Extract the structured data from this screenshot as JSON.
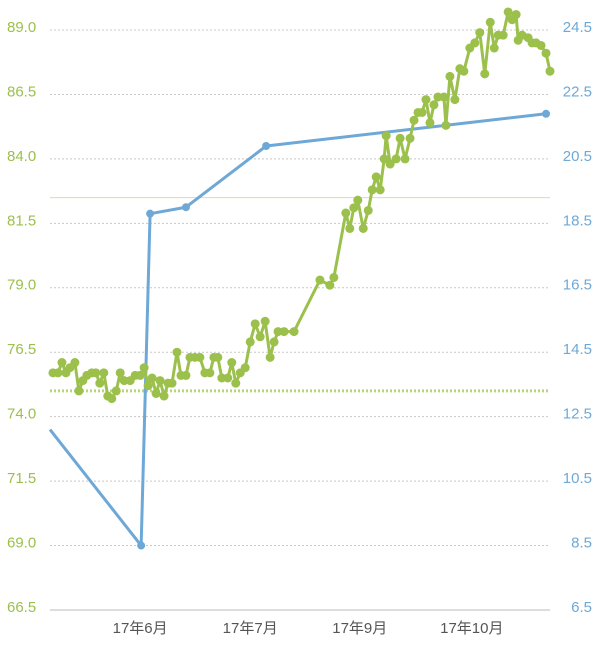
{
  "chart_data": {
    "type": "line",
    "xlim": [
      0,
      100.4
    ],
    "xticks": [
      {
        "value": 18.1,
        "label": "17年6月"
      },
      {
        "value": 40.2,
        "label": "17年7月"
      },
      {
        "value": 62.2,
        "label": "17年9月"
      },
      {
        "value": 84.7,
        "label": "17年10月"
      }
    ],
    "ylim": [
      66.5,
      89.0
    ],
    "yticks": [
      66.5,
      {
        "value": 69,
        "label": "69.0"
      },
      71.5,
      {
        "value": 74,
        "label": "74.0"
      },
      76.5,
      {
        "value": 79,
        "label": "79.0"
      },
      81.5,
      {
        "value": 84,
        "label": "84.0"
      },
      86.5,
      {
        "value": 89,
        "label": "89.0"
      }
    ],
    "y2lim": [
      6.5,
      24.5
    ],
    "y2ticks": [
      6.5,
      8.5,
      10.5,
      12.5,
      14.5,
      16.5,
      18.5,
      20.5,
      22.5,
      24.5
    ],
    "grid": true,
    "reference_lines": [
      {
        "value": 82.5,
        "color": "#ecdcaa",
        "style": "solid"
      },
      {
        "value": 75,
        "color": "#b7d67a",
        "style": "dotted"
      }
    ],
    "series": [
      {
        "color": "#9cc04c",
        "x": [
          0.6,
          1.6,
          2.4,
          3.2,
          4.0,
          5.0,
          5.8,
          6.6,
          7.4,
          8.4,
          9.2,
          10.0,
          10.8,
          11.6,
          12.4,
          13.3,
          14.1,
          14.9,
          16.1,
          17.1,
          18.1,
          18.9,
          19.7,
          20.5,
          21.3,
          22.1,
          22.9,
          23.7,
          24.5,
          25.5,
          26.3,
          27.3,
          28.1,
          29.1,
          30.1,
          31.1,
          32.1,
          32.9,
          33.7,
          34.5,
          35.7,
          36.5,
          37.3,
          38.2,
          39.2,
          40.2,
          41.2,
          42.2,
          43.2,
          44.2,
          45.0,
          45.8,
          47.0,
          49.0,
          54.2,
          56.2,
          57.0,
          59.4,
          60.2,
          61.0,
          61.8,
          62.9,
          63.9,
          64.7,
          65.5,
          66.3,
          67.1,
          67.5,
          68.3,
          69.5,
          70.3,
          71.3,
          72.3,
          73.1,
          73.9,
          74.7,
          75.5,
          76.3,
          77.1,
          77.9,
          79.1,
          79.5,
          80.3,
          81.3,
          82.3,
          83.1,
          84.3,
          85.3,
          86.3,
          87.3,
          88.4,
          89.2,
          90.0,
          91.0,
          92.0,
          92.8,
          93.6,
          94.0,
          94.8,
          96.0,
          96.8,
          97.6,
          98.6,
          99.6,
          100.4
        ],
        "values": [
          75.7,
          75.7,
          76.1,
          75.7,
          75.9,
          76.1,
          75.0,
          75.4,
          75.6,
          75.7,
          75.7,
          75.3,
          75.7,
          74.8,
          74.7,
          75.0,
          75.7,
          75.4,
          75.4,
          75.6,
          75.6,
          75.9,
          75.2,
          75.5,
          74.9,
          75.4,
          74.8,
          75.3,
          75.3,
          76.5,
          75.6,
          75.6,
          76.3,
          76.3,
          76.3,
          75.7,
          75.7,
          76.3,
          76.3,
          75.5,
          75.5,
          76.1,
          75.3,
          75.7,
          75.9,
          76.9,
          77.6,
          77.1,
          77.7,
          76.3,
          76.9,
          77.3,
          77.3,
          77.3,
          79.3,
          79.1,
          79.4,
          81.9,
          81.3,
          82.1,
          82.4,
          81.3,
          82.0,
          82.8,
          83.3,
          82.8,
          84.0,
          84.9,
          83.8,
          84.0,
          84.8,
          84.0,
          84.8,
          85.5,
          85.8,
          85.8,
          86.3,
          85.4,
          86.1,
          86.4,
          86.4,
          85.3,
          87.2,
          86.3,
          87.5,
          87.4,
          88.3,
          88.5,
          88.9,
          87.3,
          89.3,
          88.3,
          88.8,
          88.8,
          89.7,
          89.4,
          89.6,
          88.6,
          88.8,
          88.7,
          88.5,
          88.5,
          88.4,
          88.1,
          87.4
        ]
      },
      {
        "color": "#6ea8d6",
        "axis": "y2",
        "x": [
          0,
          18.3,
          20.1,
          27.3,
          43.4,
          99.6
        ],
        "values": [
          12.1,
          8.5,
          18.8,
          19.0,
          20.9,
          21.9
        ]
      }
    ]
  }
}
